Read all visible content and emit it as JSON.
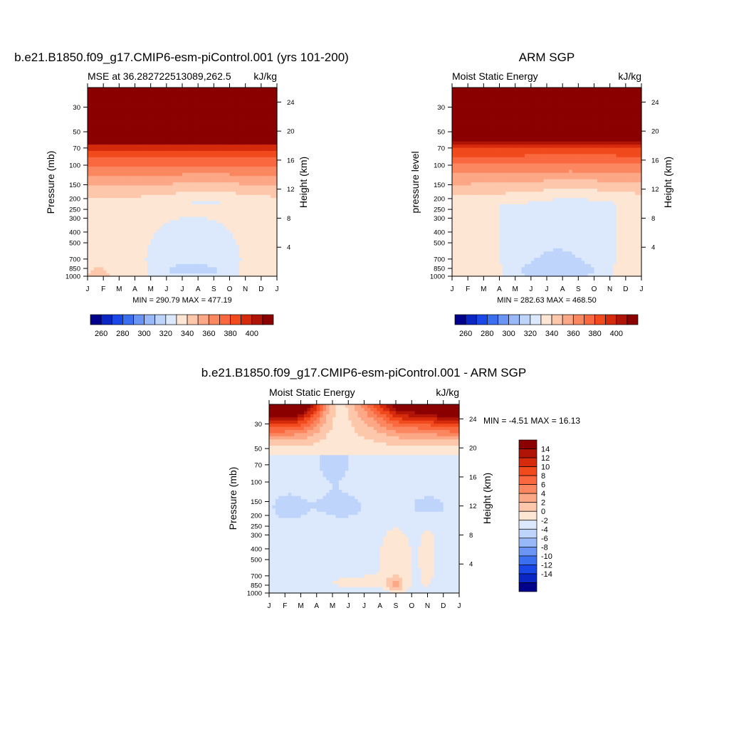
{
  "colors": {
    "absolute_scale": [
      "#00008b",
      "#0a26c4",
      "#1a47e8",
      "#3a6ff0",
      "#6a95f5",
      "#98b8f8",
      "#bed4fa",
      "#dce9fc",
      "#fde6d3",
      "#fcc7ab",
      "#fca786",
      "#fb8760",
      "#f9683e",
      "#f04a1d",
      "#d62a0c",
      "#b01406",
      "#8b0000"
    ],
    "difference_scale": [
      "#00008b",
      "#0a26c4",
      "#1a47e8",
      "#3a6ff0",
      "#6a95f5",
      "#98b8f8",
      "#bed4fa",
      "#dce9fc",
      "#fde6d3",
      "#fcc7ab",
      "#fca786",
      "#fb8760",
      "#f9683e",
      "#f04a1d",
      "#d62a0c",
      "#b01406",
      "#8b0000"
    ]
  },
  "chart_data": [
    {
      "type": "contour",
      "id": "model",
      "main_title": "b.e21.B1850.f09_g17.CMIP6-esm-piControl.001 (yrs 101-200)",
      "left_subtitle": "MSE at 36.282722513089,262.5",
      "right_subtitle": "kJ/kg",
      "ylabel": "Pressure (mb)",
      "ylabel_right": "Height (km)",
      "x_ticks": [
        "J",
        "F",
        "M",
        "A",
        "M",
        "J",
        "J",
        "A",
        "S",
        "O",
        "N",
        "D",
        "J"
      ],
      "y_ticks_pressure": [
        30,
        50,
        70,
        100,
        150,
        200,
        250,
        300,
        400,
        500,
        700,
        850,
        1000
      ],
      "y_ticks_height_km": [
        24,
        20,
        16,
        12,
        8,
        4
      ],
      "stats": "MIN = 290.79 MAX = 477.19",
      "colorbar": {
        "orientation": "horizontal",
        "labels": [
          "260",
          "280",
          "300",
          "320",
          "340",
          "360",
          "380",
          "400"
        ]
      },
      "field": "model"
    },
    {
      "type": "contour",
      "id": "obs",
      "main_title": "ARM SGP",
      "left_subtitle": "Moist Static Energy",
      "right_subtitle": "kJ/kg",
      "ylabel": "pressure level",
      "ylabel_right": "Height (km)",
      "x_ticks": [
        "J",
        "F",
        "M",
        "A",
        "M",
        "J",
        "J",
        "A",
        "S",
        "O",
        "N",
        "D",
        "J"
      ],
      "y_ticks_pressure": [
        30,
        50,
        70,
        100,
        150,
        200,
        250,
        300,
        400,
        500,
        700,
        850,
        1000
      ],
      "y_ticks_height_km": [
        24,
        20,
        16,
        12,
        8,
        4
      ],
      "stats": "MIN = 282.63 MAX = 468.50",
      "colorbar": {
        "orientation": "horizontal",
        "labels": [
          "260",
          "280",
          "300",
          "320",
          "340",
          "360",
          "380",
          "400"
        ]
      },
      "field": "obs"
    },
    {
      "type": "contour",
      "id": "diff",
      "main_title": "b.e21.B1850.f09_g17.CMIP6-esm-piControl.001 - ARM SGP",
      "left_subtitle": "Moist Static Energy",
      "right_subtitle": "kJ/kg",
      "ylabel": "Pressure (mb)",
      "ylabel_right": "Height (km)",
      "x_ticks": [
        "J",
        "F",
        "M",
        "A",
        "M",
        "J",
        "J",
        "A",
        "S",
        "O",
        "N",
        "D",
        "J"
      ],
      "y_ticks_pressure": [
        30,
        50,
        70,
        100,
        150,
        200,
        250,
        300,
        400,
        500,
        700,
        850,
        1000
      ],
      "y_ticks_height_km": [
        24,
        20,
        16,
        12,
        8,
        4
      ],
      "stats": "MIN =  -4.51 MAX =  16.13",
      "colorbar": {
        "orientation": "vertical",
        "labels": [
          "14",
          "12",
          "10",
          "8",
          "6",
          "4",
          "2",
          "0",
          "-2",
          "-4",
          "-6",
          "-8",
          "-10",
          "-12",
          "-14"
        ]
      },
      "field": "diff"
    }
  ]
}
